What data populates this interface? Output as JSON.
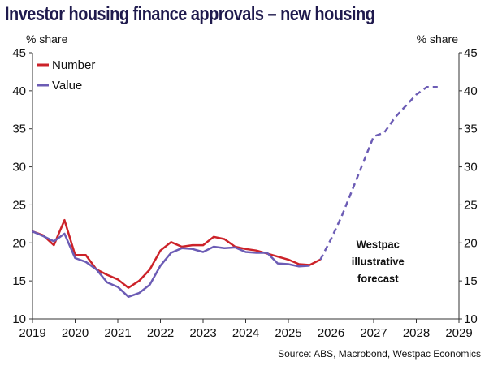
{
  "chart_data": {
    "type": "line",
    "title": "Investor housing finance approvals – new housing",
    "ylabel_left": "% share",
    "ylabel_right": "% share",
    "xlim": [
      2019,
      2029
    ],
    "ylim": [
      10,
      45
    ],
    "x_ticks": [
      "2019",
      "2020",
      "2021",
      "2022",
      "2023",
      "2024",
      "2025",
      "2026",
      "2027",
      "2028",
      "2029"
    ],
    "y_ticks": [
      "10",
      "15",
      "20",
      "25",
      "30",
      "35",
      "40",
      "45"
    ],
    "legend_position": "top-left",
    "series": [
      {
        "name": "Number",
        "color": "#cc2229",
        "style": "solid",
        "points": [
          [
            2019.0,
            21.5
          ],
          [
            2019.25,
            21.0
          ],
          [
            2019.5,
            19.7
          ],
          [
            2019.75,
            23.0
          ],
          [
            2020.0,
            18.4
          ],
          [
            2020.25,
            18.4
          ],
          [
            2020.5,
            16.5
          ],
          [
            2020.75,
            15.8
          ],
          [
            2021.0,
            15.2
          ],
          [
            2021.25,
            14.1
          ],
          [
            2021.5,
            15.0
          ],
          [
            2021.75,
            16.5
          ],
          [
            2022.0,
            19.0
          ],
          [
            2022.25,
            20.1
          ],
          [
            2022.5,
            19.5
          ],
          [
            2022.75,
            19.7
          ],
          [
            2023.0,
            19.7
          ],
          [
            2023.25,
            20.8
          ],
          [
            2023.5,
            20.5
          ],
          [
            2023.75,
            19.5
          ],
          [
            2024.0,
            19.2
          ],
          [
            2024.25,
            19.0
          ],
          [
            2024.5,
            18.6
          ],
          [
            2024.75,
            18.2
          ],
          [
            2025.0,
            17.8
          ],
          [
            2025.25,
            17.2
          ],
          [
            2025.5,
            17.1
          ],
          [
            2025.75,
            17.8
          ]
        ]
      },
      {
        "name": "Value",
        "color": "#6c5cb5",
        "style": "solid",
        "points": [
          [
            2019.0,
            21.5
          ],
          [
            2019.25,
            20.9
          ],
          [
            2019.5,
            20.2
          ],
          [
            2019.75,
            21.2
          ],
          [
            2020.0,
            18.0
          ],
          [
            2020.25,
            17.5
          ],
          [
            2020.5,
            16.5
          ],
          [
            2020.75,
            14.8
          ],
          [
            2021.0,
            14.2
          ],
          [
            2021.25,
            12.9
          ],
          [
            2021.5,
            13.4
          ],
          [
            2021.75,
            14.5
          ],
          [
            2022.0,
            17.0
          ],
          [
            2022.25,
            18.7
          ],
          [
            2022.5,
            19.3
          ],
          [
            2022.75,
            19.2
          ],
          [
            2023.0,
            18.8
          ],
          [
            2023.25,
            19.5
          ],
          [
            2023.5,
            19.3
          ],
          [
            2023.75,
            19.4
          ],
          [
            2024.0,
            18.8
          ],
          [
            2024.25,
            18.7
          ],
          [
            2024.5,
            18.7
          ],
          [
            2024.75,
            17.3
          ],
          [
            2025.0,
            17.2
          ],
          [
            2025.25,
            16.9
          ],
          [
            2025.5,
            17.0
          ]
        ]
      },
      {
        "name": "",
        "color": "#6c5cb5",
        "style": "dashed",
        "points": [
          [
            2025.75,
            17.8
          ],
          [
            2026.0,
            20.5
          ],
          [
            2026.25,
            23.5
          ],
          [
            2026.5,
            27.0
          ],
          [
            2026.75,
            30.5
          ],
          [
            2027.0,
            34.0
          ],
          [
            2027.25,
            34.5
          ],
          [
            2027.5,
            36.5
          ],
          [
            2027.75,
            38.0
          ],
          [
            2028.0,
            39.5
          ],
          [
            2028.25,
            40.5
          ],
          [
            2028.5,
            40.5
          ]
        ]
      }
    ],
    "annotation": {
      "lines": [
        "Westpac",
        "illustrative",
        "forecast"
      ],
      "x": 2027.1,
      "y": 20.0
    },
    "source": "Source: ABS, Macrobond, Westpac Economics"
  }
}
